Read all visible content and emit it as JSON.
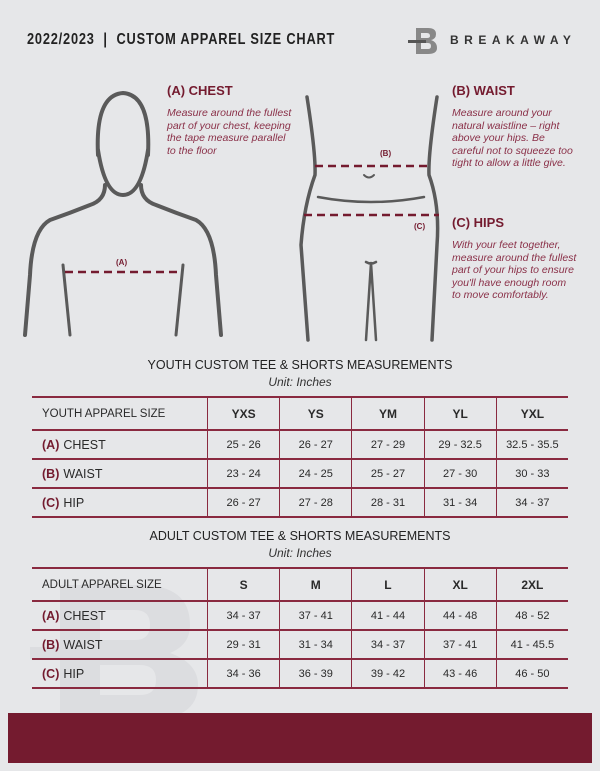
{
  "header": {
    "title": "2022/2023  |  CUSTOM APPAREL SIZE CHART",
    "brand": "BREAKAWAY",
    "logo_letter": "B"
  },
  "colors": {
    "accent": "#741b2f",
    "background": "#e6e7e9"
  },
  "measure": {
    "chest": {
      "heading": "(A) CHEST",
      "text": "Measure around the fullest part of your chest, keeping the tape measure parallel to the floor",
      "marker": "(A)"
    },
    "waist": {
      "heading": "(B) WAIST",
      "text": "Measure around your natural waistline – right above your hips. Be careful not to squeeze too tight to allow a little give.",
      "marker": "(B)"
    },
    "hips": {
      "heading": "(C) HIPS",
      "text": "With your feet together, measure around the fullest part of your hips to ensure you'll have enough room to move comfortably.",
      "marker": "(C)"
    }
  },
  "youth": {
    "title": "YOUTH CUSTOM TEE & SHORTS MEASUREMENTS",
    "unit": "Unit: Inches",
    "header": "YOUTH APPAREL SIZE",
    "sizes": [
      "YXS",
      "YS",
      "YM",
      "YL",
      "YXL"
    ],
    "rows": [
      {
        "code": "(A)",
        "label": "CHEST",
        "values": [
          "25 - 26",
          "26 - 27",
          "27 - 29",
          "29 - 32.5",
          "32.5 - 35.5"
        ]
      },
      {
        "code": "(B)",
        "label": "WAIST",
        "values": [
          "23 - 24",
          "24 - 25",
          "25 - 27",
          "27 - 30",
          "30 - 33"
        ]
      },
      {
        "code": "(C)",
        "label": "HIP",
        "values": [
          "26 - 27",
          "27 - 28",
          "28 - 31",
          "31 - 34",
          "34 - 37"
        ]
      }
    ]
  },
  "adult": {
    "title": "ADULT CUSTOM TEE & SHORTS MEASUREMENTS",
    "unit": "Unit: Inches",
    "header": "ADULT APPAREL SIZE",
    "sizes": [
      "S",
      "M",
      "L",
      "XL",
      "2XL"
    ],
    "rows": [
      {
        "code": "(A)",
        "label": "CHEST",
        "values": [
          "34 - 37",
          "37 - 41",
          "41 - 44",
          "44 - 48",
          "48 - 52"
        ]
      },
      {
        "code": "(B)",
        "label": "WAIST",
        "values": [
          "29 - 31",
          "31 - 34",
          "34 - 37",
          "37 - 41",
          "41 - 45.5"
        ]
      },
      {
        "code": "(C)",
        "label": "HIP",
        "values": [
          "34 - 36",
          "36 - 39",
          "39 - 42",
          "43 - 46",
          "46 - 50"
        ]
      }
    ]
  }
}
